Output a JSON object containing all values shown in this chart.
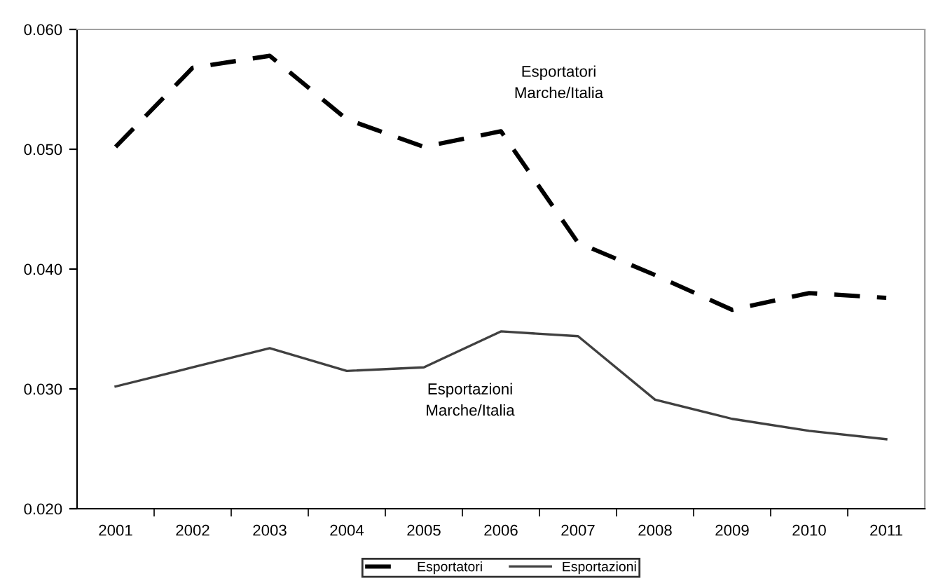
{
  "chart_data": {
    "type": "line",
    "categories": [
      "2001",
      "2002",
      "2003",
      "2004",
      "2005",
      "2006",
      "2007",
      "2008",
      "2009",
      "2010",
      "2011"
    ],
    "series": [
      {
        "name": "Esportatori",
        "color": "#000000",
        "line_style": "dashed",
        "values": [
          0.0502,
          0.0568,
          0.0578,
          0.0525,
          0.0502,
          0.0515,
          0.0422,
          0.0395,
          0.0366,
          0.038,
          0.0376
        ]
      },
      {
        "name": "Esportazioni",
        "color": "#404040",
        "line_style": "solid",
        "values": [
          0.0302,
          0.0318,
          0.0334,
          0.0315,
          0.0318,
          0.0348,
          0.0344,
          0.0291,
          0.0275,
          0.0265,
          0.0258
        ]
      }
    ],
    "ylim": [
      0.02,
      0.06
    ],
    "yticks": [
      {
        "value": 0.02,
        "label": "0.020"
      },
      {
        "value": 0.03,
        "label": "0.030"
      },
      {
        "value": 0.04,
        "label": "0.040"
      },
      {
        "value": 0.05,
        "label": "0.050"
      },
      {
        "value": 0.06,
        "label": "0.060"
      }
    ],
    "annotations": [
      "Esportatori\nMarche/Italia",
      "Esportazioni\nMarche/Italia"
    ],
    "grid": false,
    "legend": "bottom",
    "marker": "none"
  }
}
